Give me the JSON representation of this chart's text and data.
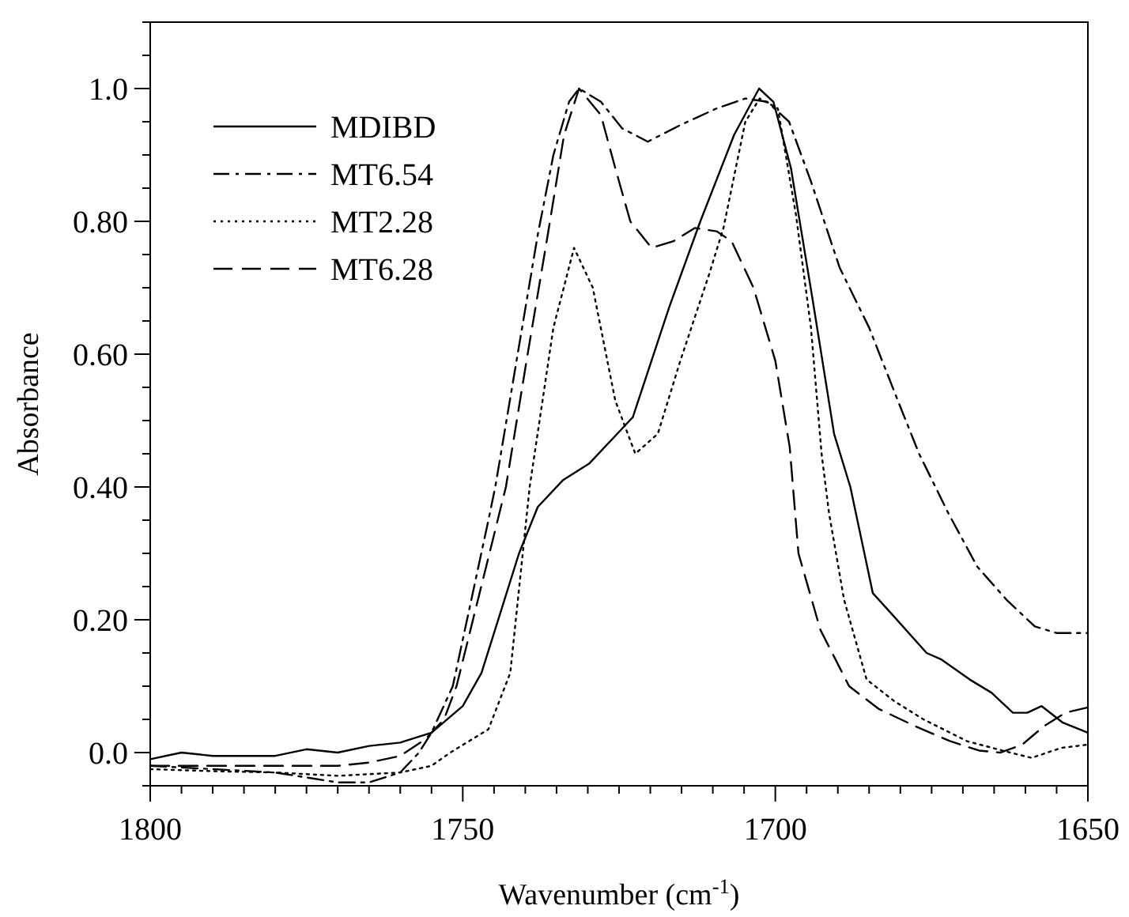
{
  "chart_data": {
    "type": "line",
    "xlabel": "Wavenumber (cm$^{-1}$)",
    "ylabel": "Absorbance",
    "xlim": [
      1800,
      1650
    ],
    "ylim": [
      -0.05,
      1.1
    ],
    "xticks": [
      1800,
      {
        "value": 1795,
        "label": null
      },
      {
        "value": 1790,
        "label": null
      },
      {
        "value": 1785,
        "label": null
      },
      {
        "value": 1780,
        "label": null
      },
      {
        "value": 1775,
        "label": null
      },
      {
        "value": 1770,
        "label": null
      },
      {
        "value": 1765,
        "label": null
      },
      {
        "value": 1760,
        "label": null
      },
      {
        "value": 1755,
        "label": null
      },
      1750,
      {
        "value": 1745,
        "label": null
      },
      {
        "value": 1740,
        "label": null
      },
      {
        "value": 1735,
        "label": null
      },
      {
        "value": 1730,
        "label": null
      },
      {
        "value": 1725,
        "label": null
      },
      {
        "value": 1720,
        "label": null
      },
      {
        "value": 1715,
        "label": null
      },
      {
        "value": 1710,
        "label": null
      },
      {
        "value": 1705,
        "label": null
      },
      1700,
      {
        "value": 1695,
        "label": null
      },
      {
        "value": 1690,
        "label": null
      },
      {
        "value": 1685,
        "label": null
      },
      {
        "value": 1680,
        "label": null
      },
      {
        "value": 1675,
        "label": null
      },
      {
        "value": 1670,
        "label": null
      },
      {
        "value": 1665,
        "label": null
      },
      {
        "value": 1660,
        "label": null
      },
      {
        "value": 1655,
        "label": null
      },
      1650
    ],
    "yticks": [
      {
        "value": -0.05,
        "label": null
      },
      {
        "value": 0,
        "label": "0.0"
      },
      {
        "value": 0.05,
        "label": null
      },
      {
        "value": 0.1,
        "label": null
      },
      {
        "value": 0.15,
        "label": null
      },
      {
        "value": 0.2,
        "label": "0.20"
      },
      {
        "value": 0.25,
        "label": null
      },
      {
        "value": 0.3,
        "label": null
      },
      {
        "value": 0.35,
        "label": null
      },
      {
        "value": 0.4,
        "label": "0.40"
      },
      {
        "value": 0.45,
        "label": null
      },
      {
        "value": 0.5,
        "label": null
      },
      {
        "value": 0.55,
        "label": null
      },
      {
        "value": 0.6,
        "label": "0.60"
      },
      {
        "value": 0.65,
        "label": null
      },
      {
        "value": 0.7,
        "label": null
      },
      {
        "value": 0.75,
        "label": null
      },
      {
        "value": 0.8,
        "label": "0.80"
      },
      {
        "value": 0.85,
        "label": null
      },
      {
        "value": 0.9,
        "label": null
      },
      {
        "value": 0.95,
        "label": null
      },
      {
        "value": 1.0,
        "label": "1.0"
      },
      {
        "value": 1.05,
        "label": null
      },
      {
        "value": 1.1,
        "label": null
      }
    ],
    "grid": false,
    "legend": "top left",
    "series": [
      {
        "name": "MDIBD",
        "color": "#000000",
        "line_style": "solid",
        "x": [
          1800,
          1795,
          1790,
          1785,
          1780,
          1775,
          1770,
          1765,
          1760,
          1755,
          1750,
          1747,
          1744,
          1741,
          1738,
          1734,
          1729.8,
          1726.3,
          1722.8,
          1717,
          1712,
          1706.6,
          1702.6,
          1700.3,
          1697.5,
          1694,
          1690.6,
          1688,
          1684.4,
          1681.5,
          1675.8,
          1673.4,
          1668.9,
          1665.4,
          1662,
          1659.7,
          1657.4,
          1654,
          1650
        ],
        "values": [
          -0.01,
          0,
          -0.005,
          -0.005,
          -0.005,
          0.005,
          0,
          0.01,
          0.015,
          0.03,
          0.07,
          0.12,
          0.21,
          0.3,
          0.37,
          0.41,
          0.435,
          0.47,
          0.505,
          0.67,
          0.8,
          0.93,
          1.0,
          0.98,
          0.88,
          0.68,
          0.48,
          0.4,
          0.24,
          0.21,
          0.15,
          0.14,
          0.11,
          0.09,
          0.06,
          0.06,
          0.07,
          0.045,
          0.03
        ]
      },
      {
        "name": "MT6.54",
        "color": "#000000",
        "line_style": "dashdot",
        "x": [
          1800,
          1790,
          1780,
          1770,
          1765,
          1760,
          1757,
          1755,
          1751.6,
          1745.9,
          1744.8,
          1741.4,
          1738,
          1735.5,
          1733,
          1731.4,
          1727.9,
          1724.5,
          1720.4,
          1715.2,
          1709.4,
          1704.8,
          1701.3,
          1697.8,
          1694.3,
          1689.7,
          1685,
          1680.4,
          1677,
          1672.3,
          1667.7,
          1663,
          1658.5,
          1655,
          1650
        ],
        "values": [
          -0.02,
          -0.025,
          -0.03,
          -0.045,
          -0.045,
          -0.03,
          0,
          0.03,
          0.1,
          0.35,
          0.4,
          0.59,
          0.78,
          0.9,
          0.98,
          1.0,
          0.98,
          0.94,
          0.92,
          0.945,
          0.97,
          0.985,
          0.98,
          0.95,
          0.86,
          0.73,
          0.64,
          0.53,
          0.45,
          0.36,
          0.28,
          0.23,
          0.19,
          0.18,
          0.18
        ]
      },
      {
        "name": "MT2.28",
        "color": "#000000",
        "line_style": "dotted",
        "x": [
          1800,
          1790,
          1780,
          1770,
          1760,
          1755,
          1752,
          1745.9,
          1742.4,
          1739.3,
          1735.5,
          1732.2,
          1729.2,
          1725.6,
          1722.4,
          1718.8,
          1715.2,
          1710.6,
          1708.3,
          1704.8,
          1702.5,
          1699.6,
          1696.7,
          1694.3,
          1692.6,
          1691.4,
          1689,
          1685.4,
          1680.9,
          1676.3,
          1669.3,
          1662.4,
          1659,
          1654.3,
          1650
        ],
        "values": [
          -0.025,
          -0.028,
          -0.03,
          -0.035,
          -0.03,
          -0.02,
          0,
          0.035,
          0.12,
          0.4,
          0.64,
          0.76,
          0.7,
          0.53,
          0.45,
          0.48,
          0.59,
          0.72,
          0.79,
          0.95,
          0.985,
          0.97,
          0.81,
          0.64,
          0.45,
          0.36,
          0.23,
          0.11,
          0.077,
          0.05,
          0.017,
          0,
          -0.008,
          0.007,
          0.012
        ]
      },
      {
        "name": "MT6.28",
        "color": "#000000",
        "line_style": "dashed",
        "x": [
          1800,
          1790,
          1780,
          1770,
          1765,
          1760,
          1756,
          1753,
          1751,
          1743.1,
          1739.8,
          1736.4,
          1733.8,
          1731.4,
          1727.9,
          1725.6,
          1723.2,
          1719.8,
          1716.3,
          1712.9,
          1709.4,
          1707,
          1703.5,
          1700,
          1697.7,
          1696.3,
          1692.8,
          1688.2,
          1683.5,
          1677.7,
          1672,
          1667.4,
          1664,
          1660.5,
          1657,
          1653.6,
          1650
        ],
        "values": [
          -0.02,
          -0.02,
          -0.02,
          -0.02,
          -0.015,
          -0.005,
          0.02,
          0.05,
          0.1,
          0.4,
          0.59,
          0.78,
          0.93,
          1.0,
          0.96,
          0.88,
          0.8,
          0.76,
          0.77,
          0.79,
          0.785,
          0.77,
          0.7,
          0.59,
          0.46,
          0.3,
          0.185,
          0.1,
          0.066,
          0.04,
          0.017,
          0.003,
          0,
          0.012,
          0.04,
          0.06,
          0.068
        ]
      }
    ]
  }
}
